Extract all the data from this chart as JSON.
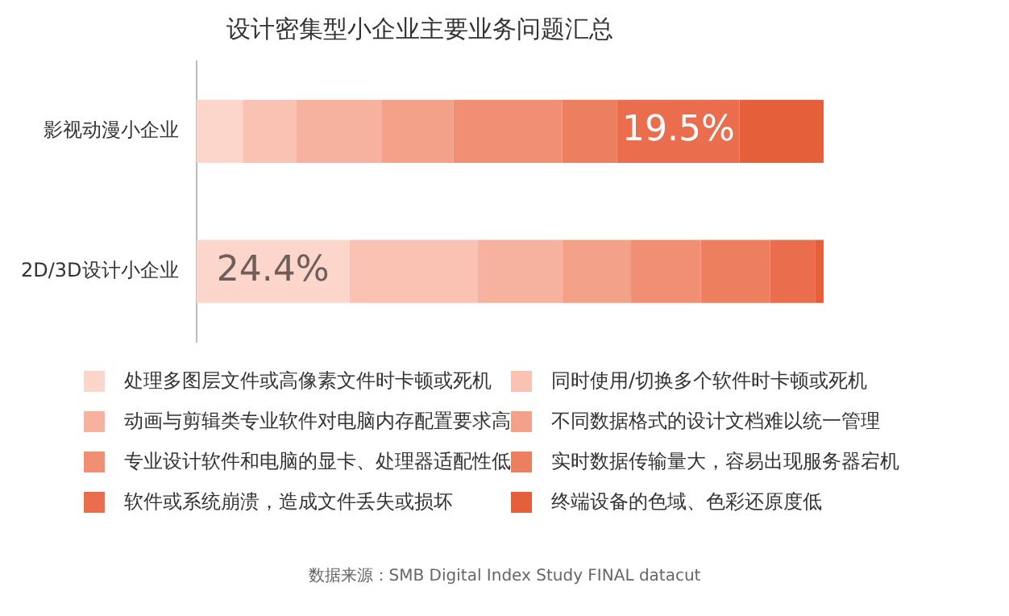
{
  "chart_data": {
    "type": "bar",
    "orientation": "horizontal",
    "stacked": true,
    "title": "设计密集型小企业主要业务问题汇总",
    "categories": [
      "影视动漫小企业",
      "2D/3D设计小企业"
    ],
    "legend": "bottom",
    "xlim": [
      0,
      100
    ],
    "tick_labels": "y",
    "series": [
      {
        "name": "处理多图层文件或高像素文件时卡顿或死机",
        "color": "#fcd5cb",
        "values": [
          7.4,
          24.4
        ],
        "value_labels": [
          null,
          "24.4%"
        ]
      },
      {
        "name": "同时使用/切换多个软件时卡顿或死机",
        "color": "#f9c2b2",
        "values": [
          8.5,
          20.4
        ]
      },
      {
        "name": "动画与剪辑类专业软件对电脑内存配置要求高",
        "color": "#f7b29f",
        "values": [
          13.7,
          13.5
        ]
      },
      {
        "name": "不同数据格式的设计文档难以统一管理",
        "color": "#f3a188",
        "values": [
          11.4,
          11.0
        ]
      },
      {
        "name": "专业设计软件和电脑的显卡、处理器适配性低",
        "color": "#f08f74",
        "values": [
          17.3,
          11.1
        ]
      },
      {
        "name": "实时数据传输量大，容易出现服务器宕机",
        "color": "#ed7f61",
        "values": [
          8.8,
          11.1
        ]
      },
      {
        "name": "软件或系统崩溃，造成文件丢失或损坏",
        "color": "#ea6d4d",
        "values": [
          19.5,
          7.2
        ],
        "value_labels": [
          "19.5%",
          null
        ]
      },
      {
        "name": "终端设备的色域、色彩还原度低",
        "color": "#e55f3a",
        "values": [
          13.4,
          1.3
        ]
      }
    ],
    "annotations": [
      "数据来源：SMB Digital Index Study FINAL datacut"
    ]
  }
}
